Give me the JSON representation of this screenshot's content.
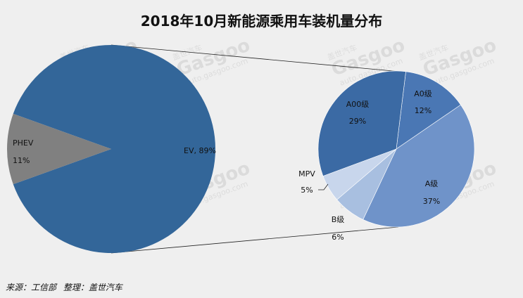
{
  "title": "2018年10月新能源乘用车装机量分布",
  "source": {
    "source_label": "来源：工信部",
    "edited_label": "整理：盖世汽车"
  },
  "watermark": {
    "brand_cn": "盖世汽车",
    "brand_en": "Gasgoo",
    "url": "auto.gasgoo.com"
  },
  "chart_data": [
    {
      "type": "pie",
      "slices": [
        {
          "label": "EV",
          "value": 89,
          "value_text": "EV, 89%",
          "color": "#336699"
        },
        {
          "label": "PHEV",
          "value": 11,
          "value_text": "11%",
          "color": "#808080"
        }
      ]
    },
    {
      "type": "pie",
      "slices": [
        {
          "label": "A0级",
          "value": 12,
          "value_text": "12%",
          "color": "#4a77b4"
        },
        {
          "label": "A级",
          "value": 37,
          "value_text": "37%",
          "color": "#6f93c9"
        },
        {
          "label": "B级",
          "value": 6,
          "value_text": "6%",
          "color": "#a8bfe0"
        },
        {
          "label": "MPV",
          "value": 5,
          "value_text": "5%",
          "color": "#c8d6ec"
        },
        {
          "label": "A00级",
          "value": 29,
          "value_text": "29%",
          "color": "#3b6aa4"
        }
      ]
    }
  ]
}
